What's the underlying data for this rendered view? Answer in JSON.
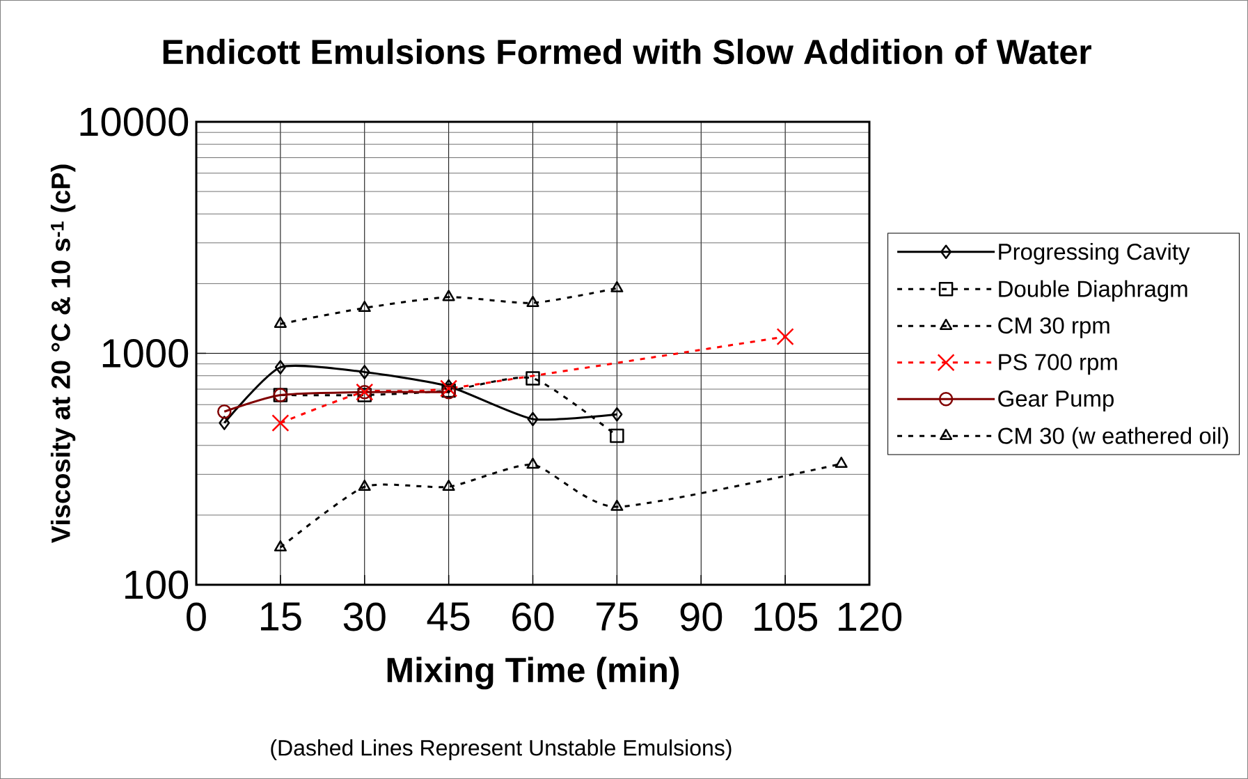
{
  "chart_data": {
    "type": "line",
    "title": "Endicott  Emulsions Formed with Slow Addition of Water",
    "xlabel": "Mixing Time (min)",
    "ylabel": "Viscosity at 20 °C & 10 s$^{-1}$ (cP)",
    "annotations": [
      "(Dashed Lines Represent Unstable Emulsions)"
    ],
    "log": "y",
    "grid": true,
    "legend": "right",
    "xlim": [
      0,
      120
    ],
    "xticks": [
      0,
      15,
      30,
      45,
      60,
      75,
      90,
      105,
      120
    ],
    "ylim": [
      100,
      10000
    ],
    "yticks": [
      100,
      1000,
      10000
    ],
    "series": [
      {
        "name": "Progressing Cavity",
        "color": "#000000",
        "marker": "diamond",
        "line_style": "solid",
        "x": [
          5,
          15,
          30,
          45,
          60,
          75
        ],
        "values": [
          500,
          870,
          830,
          720,
          520,
          545
        ]
      },
      {
        "name": "Double Diaphragm",
        "color": "#000000",
        "marker": "square",
        "line_style": "dashed",
        "x": [
          15,
          30,
          45,
          60,
          75
        ],
        "values": [
          660,
          660,
          690,
          780,
          440
        ]
      },
      {
        "name": "CM 30 rpm",
        "color": "#000000",
        "marker": "triangle",
        "line_style": "dashed",
        "x": [
          15,
          30,
          45,
          60,
          75,
          115
        ],
        "values": [
          145,
          265,
          265,
          330,
          217,
          333
        ]
      },
      {
        "name": "PS 700 rpm",
        "color": "#ff0000",
        "marker": "cross",
        "line_style": "dashed",
        "x": [
          15,
          30,
          45,
          105
        ],
        "values": [
          500,
          680,
          705,
          1180
        ]
      },
      {
        "name": "Gear Pump",
        "color": "#800000",
        "marker": "circle",
        "line_style": "solid",
        "x": [
          5,
          15,
          30,
          45
        ],
        "values": [
          560,
          660,
          680,
          680
        ]
      },
      {
        "name": "CM 30 (w eathered oil)",
        "color": "#000000",
        "marker": "triangle",
        "line_style": "dashed",
        "x": [
          15,
          30,
          45,
          60,
          75
        ],
        "values": [
          1340,
          1570,
          1750,
          1650,
          1910
        ]
      }
    ]
  }
}
